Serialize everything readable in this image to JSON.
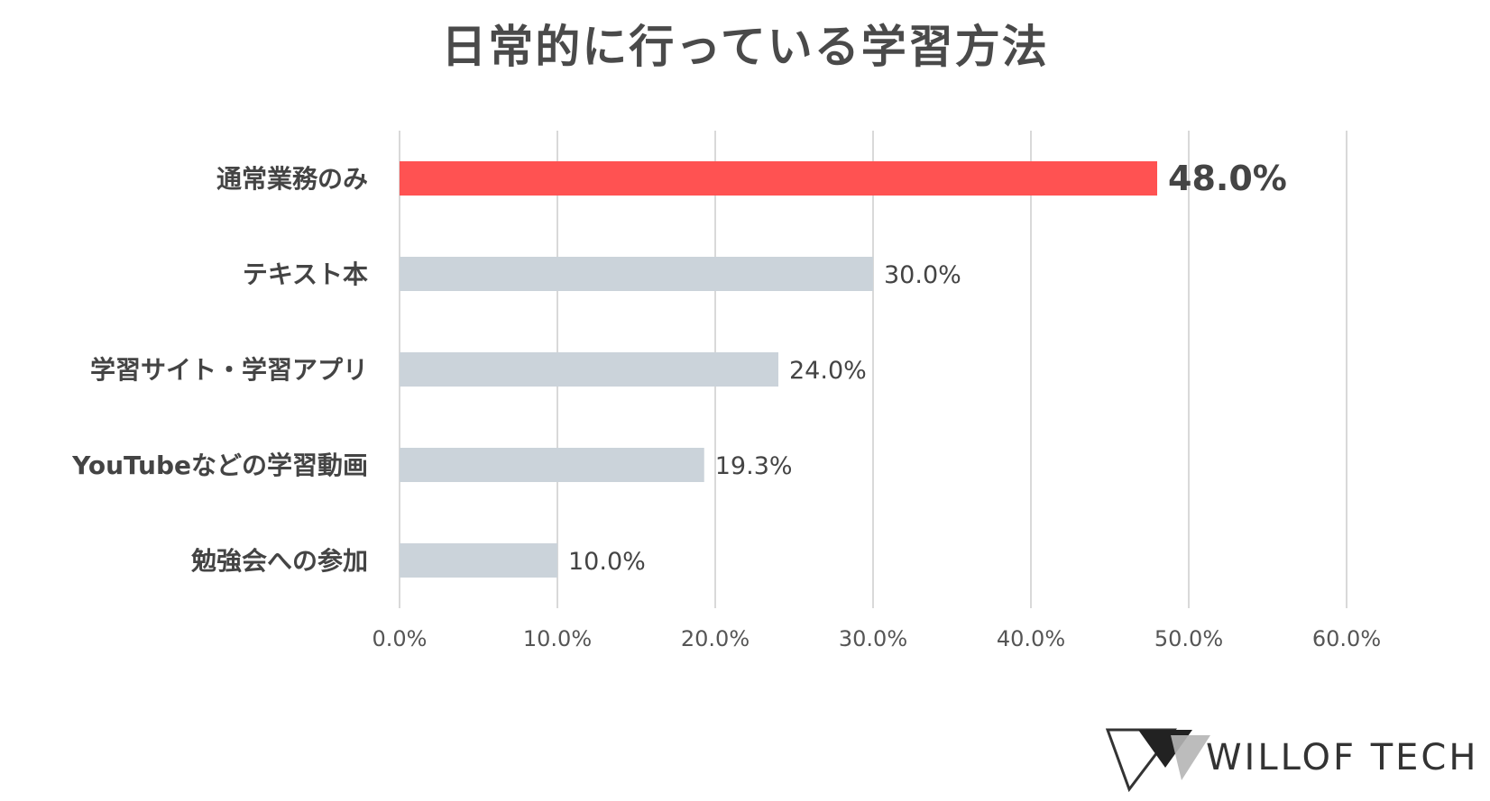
{
  "chart_data": {
    "type": "bar",
    "orientation": "horizontal",
    "title": "日常的に行っている学習方法",
    "categories": [
      "通常業務のみ",
      "テキスト本",
      "学習サイト・学習アプリ",
      "YouTubeなどの学習動画",
      "勉強会への参加"
    ],
    "values": [
      48.0,
      30.0,
      24.0,
      19.3,
      10.0
    ],
    "value_labels": [
      "48.0%",
      "30.0%",
      "24.0%",
      "19.3%",
      "10.0%"
    ],
    "xlim": [
      0,
      60
    ],
    "x_ticks": [
      0,
      10,
      20,
      30,
      40,
      50,
      60
    ],
    "x_tick_labels": [
      "0.0%",
      "10.0%",
      "20.0%",
      "30.0%",
      "40.0%",
      "50.0%",
      "60.0%"
    ],
    "grid": "vertical",
    "highlight_index": 0,
    "colors": {
      "highlight": "#ff5252",
      "bar": "#cbd3da",
      "grid": "#d9d9d9",
      "text": "#444444"
    }
  },
  "brand": {
    "name": "WILLOF TECH",
    "logo_icon": "willof-mark-icon"
  }
}
